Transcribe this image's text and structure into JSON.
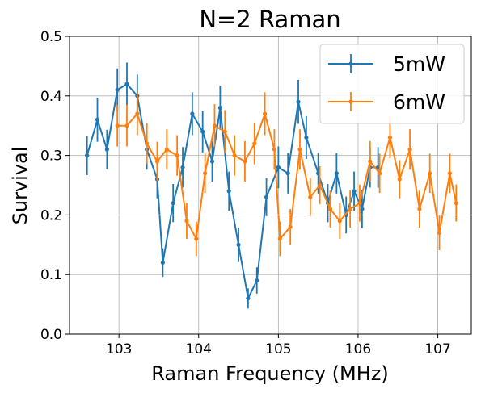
{
  "chart_data": {
    "type": "line",
    "title": "N=2 Raman",
    "xlabel": "Raman Frequency (MHz)",
    "ylabel": "Survival",
    "xlim": [
      102.38,
      107.42
    ],
    "ylim": [
      0.0,
      0.5
    ],
    "xticks": [
      103,
      104,
      105,
      106,
      107
    ],
    "yticks": [
      0.0,
      0.1,
      0.2,
      0.3,
      0.4,
      0.5
    ],
    "xtick_labels": [
      "103",
      "104",
      "105",
      "106",
      "107"
    ],
    "ytick_labels": [
      "0.0",
      "0.1",
      "0.2",
      "0.3",
      "0.4",
      "0.5"
    ],
    "grid": true,
    "legend_position": "top-right",
    "series": [
      {
        "name": "5mW",
        "color": "#1f77b4",
        "x": [
          102.6,
          102.73,
          102.85,
          102.98,
          103.1,
          103.23,
          103.35,
          103.48,
          103.55,
          103.68,
          103.8,
          103.92,
          104.05,
          104.17,
          104.27,
          104.38,
          104.5,
          104.62,
          104.73,
          104.85,
          105.0,
          105.12,
          105.25,
          105.35,
          105.5,
          105.62,
          105.73,
          105.85,
          105.95,
          106.05,
          106.15,
          106.25
        ],
        "y": [
          0.3,
          0.36,
          0.31,
          0.41,
          0.42,
          0.4,
          0.31,
          0.26,
          0.12,
          0.22,
          0.28,
          0.37,
          0.34,
          0.29,
          0.38,
          0.24,
          0.15,
          0.06,
          0.09,
          0.23,
          0.28,
          0.27,
          0.39,
          0.33,
          0.27,
          0.22,
          0.27,
          0.2,
          0.24,
          0.21,
          0.28,
          0.28
        ],
        "err": [
          0.033,
          0.037,
          0.033,
          0.036,
          0.036,
          0.036,
          0.034,
          0.032,
          0.024,
          0.032,
          0.034,
          0.036,
          0.035,
          0.034,
          0.037,
          0.033,
          0.029,
          0.017,
          0.022,
          0.032,
          0.035,
          0.034,
          0.037,
          0.036,
          0.034,
          0.032,
          0.034,
          0.031,
          0.033,
          0.032,
          0.034,
          0.034
        ]
      },
      {
        "name": "6mW",
        "color": "#ff7f0e",
        "x": [
          102.98,
          103.1,
          103.23,
          103.35,
          103.48,
          103.6,
          103.73,
          103.85,
          103.97,
          104.08,
          104.2,
          104.33,
          104.45,
          104.58,
          104.7,
          104.83,
          104.95,
          105.02,
          105.15,
          105.27,
          105.4,
          105.52,
          105.65,
          105.77,
          105.9,
          106.02,
          106.15,
          106.27,
          106.4,
          106.52,
          106.65,
          106.77,
          106.9,
          107.02,
          107.15,
          107.23
        ],
        "y": [
          0.35,
          0.35,
          0.37,
          0.32,
          0.29,
          0.31,
          0.3,
          0.19,
          0.16,
          0.27,
          0.35,
          0.34,
          0.3,
          0.29,
          0.32,
          0.37,
          0.31,
          0.16,
          0.18,
          0.31,
          0.23,
          0.25,
          0.21,
          0.19,
          0.21,
          0.22,
          0.29,
          0.27,
          0.33,
          0.26,
          0.31,
          0.21,
          0.27,
          0.17,
          0.27,
          0.22
        ],
        "err": [
          0.035,
          0.035,
          0.036,
          0.034,
          0.033,
          0.034,
          0.034,
          0.03,
          0.029,
          0.033,
          0.036,
          0.036,
          0.034,
          0.034,
          0.035,
          0.036,
          0.034,
          0.029,
          0.03,
          0.034,
          0.032,
          0.032,
          0.031,
          0.03,
          0.031,
          0.031,
          0.034,
          0.033,
          0.035,
          0.032,
          0.034,
          0.031,
          0.033,
          0.029,
          0.033,
          0.031
        ]
      }
    ]
  }
}
